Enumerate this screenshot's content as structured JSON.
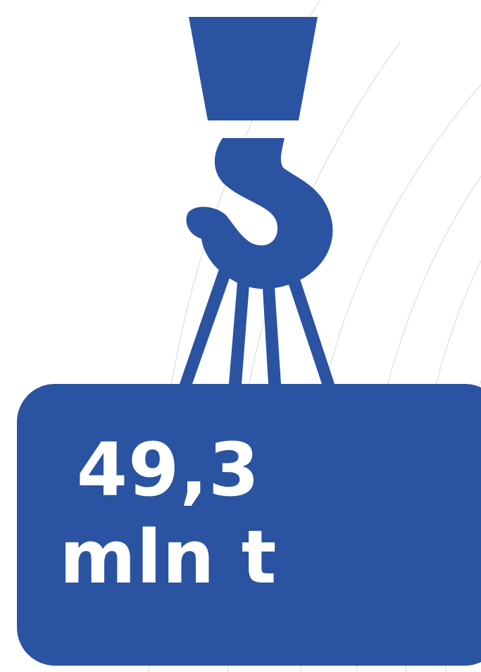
{
  "colors": {
    "primary": "#2a53a1",
    "text": "#ffffff",
    "background": "#ffffff",
    "background_lines": "#e3e3e3"
  },
  "graphic": {
    "icon": "crane-hook-icon",
    "box_icon": "load-box"
  },
  "metric": {
    "value": "49,3",
    "unit": "mln t"
  }
}
